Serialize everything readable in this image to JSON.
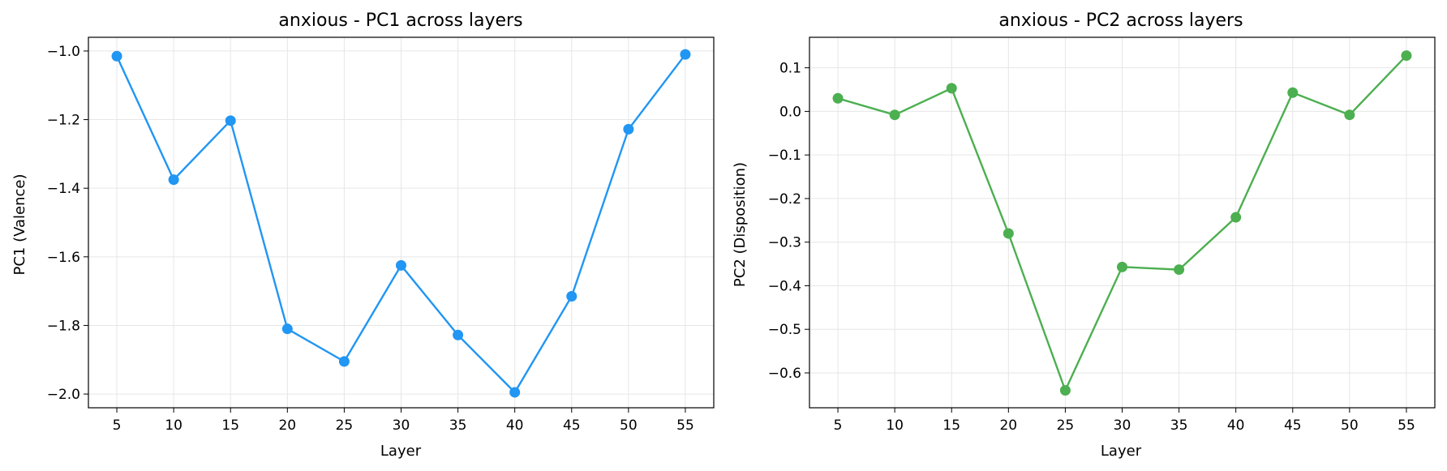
{
  "chart_data": [
    {
      "type": "line",
      "title": "anxious - PC1 across layers",
      "xlabel": "Layer",
      "ylabel": "PC1 (Valence)",
      "x": [
        5,
        10,
        15,
        20,
        25,
        30,
        35,
        40,
        45,
        50,
        55
      ],
      "xticks": [
        5,
        10,
        15,
        20,
        25,
        30,
        35,
        40,
        45,
        50,
        55
      ],
      "xlim": [
        2.5,
        57.5
      ],
      "ylim": [
        -2.04,
        -0.96
      ],
      "yticks": [
        -1.0,
        -1.2,
        -1.4,
        -1.6,
        -1.8,
        -2.0
      ],
      "ytick_labels": [
        "−1.0",
        "−1.2",
        "−1.4",
        "−1.6",
        "−1.8",
        "−2.0"
      ],
      "grid": true,
      "series": [
        {
          "values": [
            -1.015,
            -1.375,
            -1.203,
            -1.81,
            -1.905,
            -1.625,
            -1.828,
            -1.995,
            -1.715,
            -1.228,
            -1.01
          ],
          "color": "#2196f3"
        }
      ]
    },
    {
      "type": "line",
      "title": "anxious - PC2 across layers",
      "xlabel": "Layer",
      "ylabel": "PC2 (Disposition)",
      "x": [
        5,
        10,
        15,
        20,
        25,
        30,
        35,
        40,
        45,
        50,
        55
      ],
      "xticks": [
        5,
        10,
        15,
        20,
        25,
        30,
        35,
        40,
        45,
        50,
        55
      ],
      "xlim": [
        2.5,
        57.5
      ],
      "ylim": [
        -0.68,
        0.17
      ],
      "yticks": [
        0.1,
        0.0,
        -0.1,
        -0.2,
        -0.3,
        -0.4,
        -0.5,
        -0.6
      ],
      "ytick_labels": [
        "0.1",
        "0.0",
        "−0.1",
        "−0.2",
        "−0.3",
        "−0.4",
        "−0.5",
        "−0.6"
      ],
      "grid": true,
      "series": [
        {
          "values": [
            0.03,
            -0.008,
            0.053,
            -0.28,
            -0.64,
            -0.357,
            -0.363,
            -0.243,
            0.043,
            -0.008,
            0.128
          ],
          "color": "#4caf50"
        }
      ]
    }
  ]
}
